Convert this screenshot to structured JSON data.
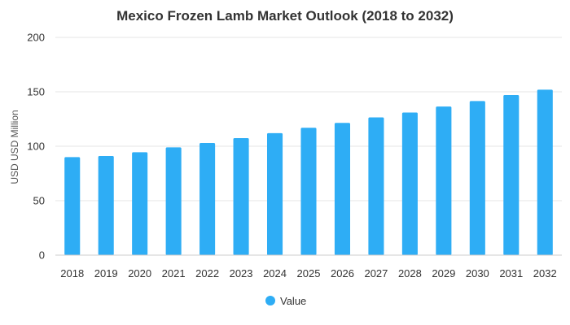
{
  "chart_data": {
    "type": "bar",
    "title": "Mexico Frozen Lamb Market Outlook (2018 to 2032)",
    "xlabel": "",
    "ylabel": "USD USD Million",
    "ylim": [
      0,
      200
    ],
    "yticks": [
      0,
      50,
      100,
      150,
      200
    ],
    "grid": true,
    "legend_position": "bottom-center",
    "categories": [
      "2018",
      "2019",
      "2020",
      "2021",
      "2022",
      "2023",
      "2024",
      "2025",
      "2026",
      "2027",
      "2028",
      "2029",
      "2030",
      "2031",
      "2032"
    ],
    "series": [
      {
        "name": "Value",
        "color": "#2eadf5",
        "values": [
          90,
          91,
          94.5,
          99,
          103,
          107.5,
          112,
          117,
          121.5,
          126.5,
          131,
          136.5,
          141.5,
          147,
          152
        ]
      }
    ]
  }
}
